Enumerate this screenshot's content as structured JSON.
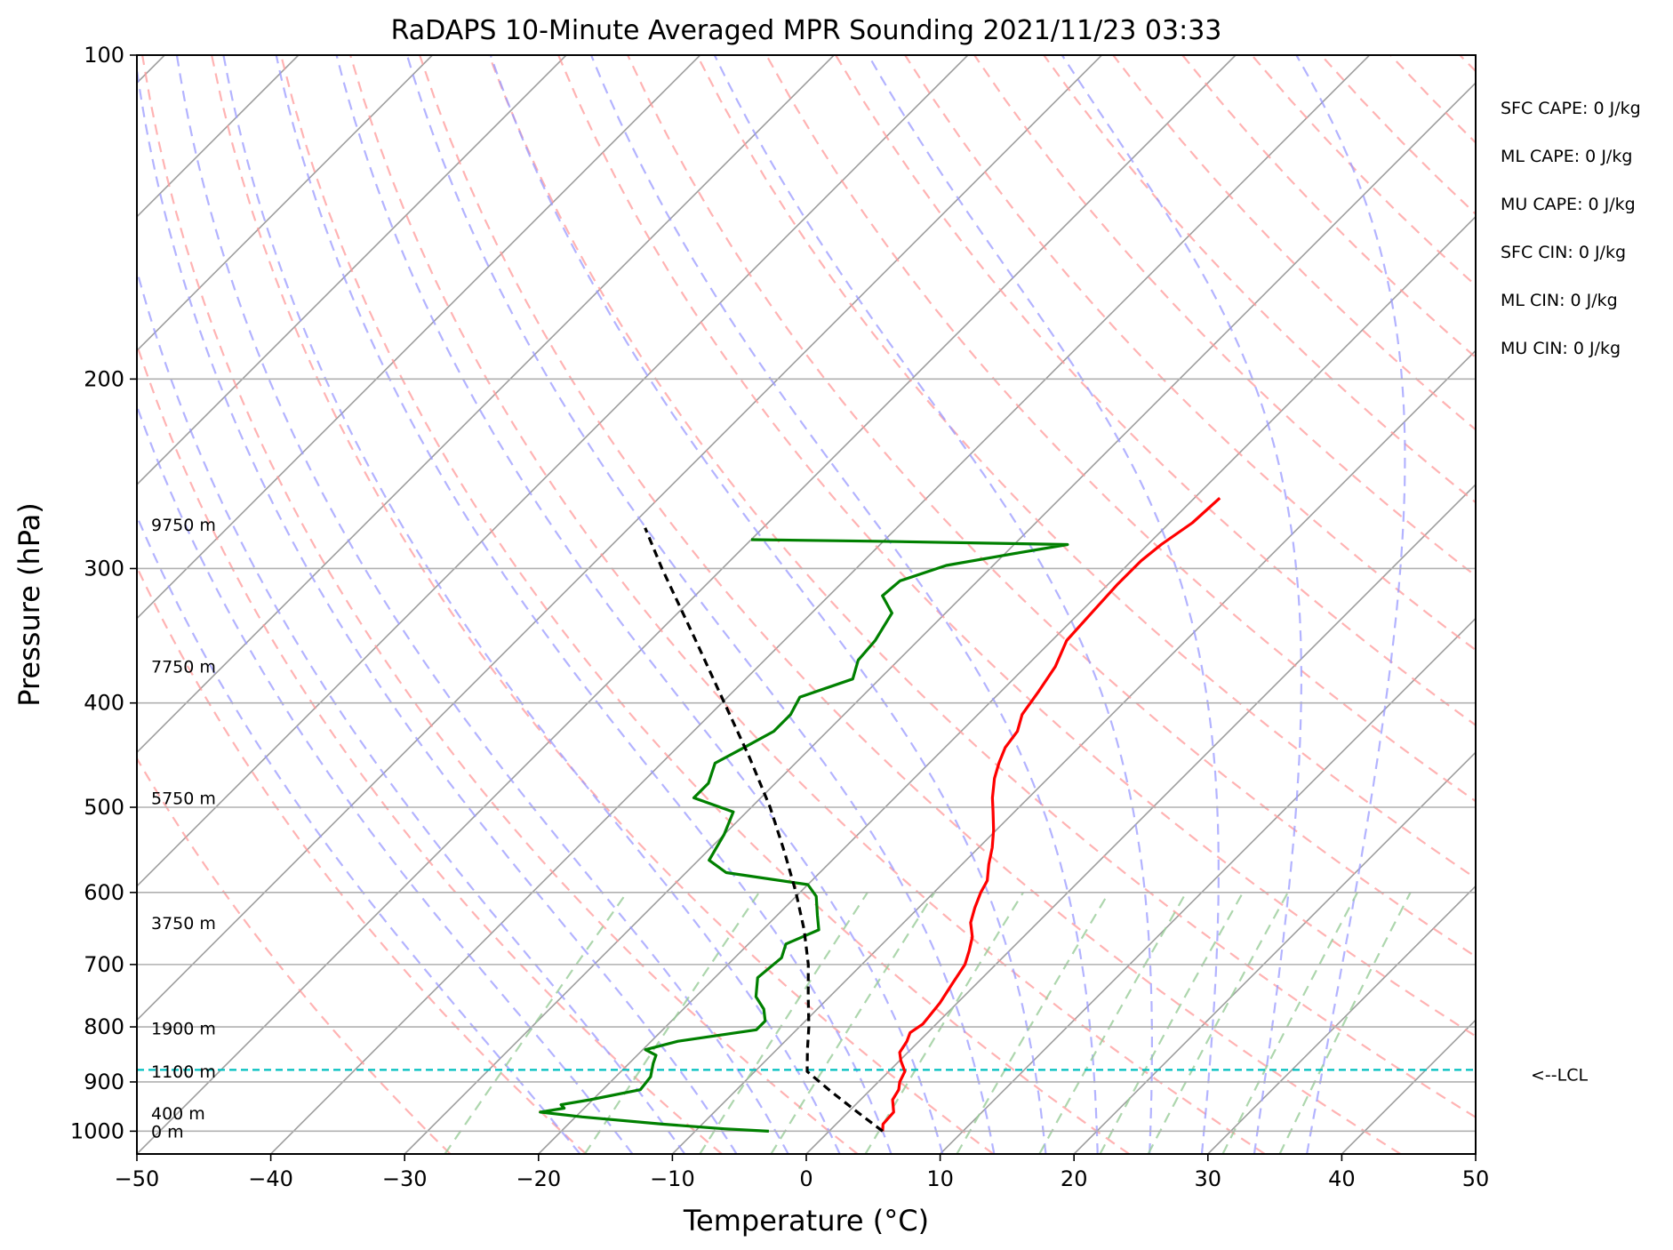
{
  "chart_data": {
    "type": "line",
    "title": "RaDAPS 10-Minute Averaged MPR Sounding 2021/11/23 03:33",
    "xlabel": "Temperature (°C)",
    "ylabel": "Pressure (hPa)",
    "xlim": [
      -50,
      50
    ],
    "ylim": [
      1050,
      100
    ],
    "y_scale": "log",
    "x_ticks": [
      "−50",
      "−40",
      "−30",
      "−20",
      "−10",
      "0",
      "10",
      "20",
      "30",
      "40",
      "50"
    ],
    "y_ticks": [
      {
        "p": 100,
        "label": "100"
      },
      {
        "p": 200,
        "label": "200"
      },
      {
        "p": 300,
        "label": "300"
      },
      {
        "p": 400,
        "label": "400"
      },
      {
        "p": 500,
        "label": "500"
      },
      {
        "p": 600,
        "label": "600"
      },
      {
        "p": 700,
        "label": "700"
      },
      {
        "p": 800,
        "label": "800"
      },
      {
        "p": 900,
        "label": "900"
      },
      {
        "p": 1000,
        "label": "1000"
      }
    ],
    "grid": true,
    "skew": true,
    "series": [
      {
        "role": "temperature",
        "color": "#ff0000",
        "points": [
          [
            1000,
            4.0
          ],
          [
            985,
            3.5
          ],
          [
            960,
            3.4
          ],
          [
            935,
            2.4
          ],
          [
            915,
            2.1
          ],
          [
            900,
            1.6
          ],
          [
            880,
            1.2
          ],
          [
            860,
            0.1
          ],
          [
            845,
            -0.6
          ],
          [
            825,
            -0.9
          ],
          [
            810,
            -1.3
          ],
          [
            795,
            -1.0
          ],
          [
            760,
            -1.3
          ],
          [
            730,
            -1.8
          ],
          [
            700,
            -2.3
          ],
          [
            680,
            -3.0
          ],
          [
            660,
            -3.8
          ],
          [
            640,
            -5.0
          ],
          [
            620,
            -5.8
          ],
          [
            600,
            -6.5
          ],
          [
            585,
            -6.9
          ],
          [
            565,
            -8.0
          ],
          [
            545,
            -9.0
          ],
          [
            525,
            -10.2
          ],
          [
            505,
            -11.6
          ],
          [
            490,
            -12.7
          ],
          [
            470,
            -14.0
          ],
          [
            455,
            -14.8
          ],
          [
            440,
            -15.5
          ],
          [
            425,
            -15.8
          ],
          [
            410,
            -16.7
          ],
          [
            390,
            -17.2
          ],
          [
            370,
            -17.8
          ],
          [
            350,
            -18.9
          ],
          [
            330,
            -19.1
          ],
          [
            310,
            -19.3
          ],
          [
            295,
            -19.3
          ],
          [
            285,
            -19.0
          ],
          [
            272,
            -18.3
          ],
          [
            258,
            -18.1
          ]
        ]
      },
      {
        "role": "dewpoint",
        "color": "#008000",
        "points": [
          [
            1000,
            -4.5
          ],
          [
            995,
            -8.0
          ],
          [
            985,
            -13.0
          ],
          [
            970,
            -19.5
          ],
          [
            960,
            -23.0
          ],
          [
            952,
            -21.5
          ],
          [
            945,
            -22.0
          ],
          [
            935,
            -20.2
          ],
          [
            915,
            -17.2
          ],
          [
            890,
            -17.4
          ],
          [
            865,
            -18.2
          ],
          [
            850,
            -18.6
          ],
          [
            840,
            -19.8
          ],
          [
            825,
            -18.0
          ],
          [
            805,
            -13.0
          ],
          [
            790,
            -13.0
          ],
          [
            770,
            -14.0
          ],
          [
            750,
            -15.5
          ],
          [
            720,
            -16.8
          ],
          [
            690,
            -16.5
          ],
          [
            670,
            -17.2
          ],
          [
            650,
            -15.8
          ],
          [
            630,
            -17.0
          ],
          [
            605,
            -18.5
          ],
          [
            590,
            -20.0
          ],
          [
            575,
            -27.0
          ],
          [
            560,
            -29.2
          ],
          [
            530,
            -30.0
          ],
          [
            505,
            -31.0
          ],
          [
            490,
            -35.0
          ],
          [
            475,
            -35.0
          ],
          [
            455,
            -36.0
          ],
          [
            440,
            -35.0
          ],
          [
            425,
            -34.0
          ],
          [
            410,
            -34.0
          ],
          [
            395,
            -34.6
          ],
          [
            380,
            -32.0
          ],
          [
            365,
            -33.0
          ],
          [
            350,
            -33.2
          ],
          [
            330,
            -34.0
          ],
          [
            318,
            -36.0
          ],
          [
            308,
            -35.8
          ],
          [
            298,
            -33.5
          ],
          [
            290,
            -29.0
          ],
          [
            285,
            -26.0
          ],
          [
            283,
            -40.5
          ],
          [
            282,
            -50.0
          ]
        ]
      },
      {
        "role": "parcel",
        "color": "#000000",
        "dashed": true,
        "points": [
          [
            1000,
            4.0
          ],
          [
            960,
            0.7
          ],
          [
            920,
            -2.7
          ],
          [
            880,
            -6.1
          ],
          [
            840,
            -7.7
          ],
          [
            800,
            -9.3
          ],
          [
            750,
            -11.6
          ],
          [
            700,
            -14.0
          ],
          [
            650,
            -16.9
          ],
          [
            600,
            -20.3
          ],
          [
            550,
            -24.2
          ],
          [
            500,
            -28.6
          ],
          [
            450,
            -33.8
          ],
          [
            400,
            -39.8
          ],
          [
            350,
            -46.6
          ],
          [
            300,
            -54.5
          ],
          [
            275,
            -58.8
          ]
        ]
      }
    ],
    "lcl_pressure": 877,
    "lcl_color": "#00bfbf",
    "lcl_label": "<--LCL",
    "height_labels": [
      {
        "p": 1000,
        "label": "0 m"
      },
      {
        "p": 962,
        "label": "400 m"
      },
      {
        "p": 880,
        "label": "1100 m"
      },
      {
        "p": 802,
        "label": "1900 m"
      },
      {
        "p": 640,
        "label": "3750 m"
      },
      {
        "p": 490,
        "label": "5750 m"
      },
      {
        "p": 370,
        "label": "7750 m"
      },
      {
        "p": 273,
        "label": "9750 m"
      }
    ],
    "indices": [
      "SFC CAPE: 0 J/kg",
      "ML CAPE: 0 J/kg",
      "MU CAPE: 0 J/kg",
      "SFC CIN: 0 J/kg",
      "ML CIN: 0 J/kg",
      "MU CIN: 0 J/kg"
    ],
    "background_lines": {
      "isotherm_color": "#9e9e9e",
      "dry_adiabat_color": "#ff9999",
      "moist_adiabat_color": "#9999ff",
      "mixing_ratio_color": "#99cc99"
    }
  }
}
